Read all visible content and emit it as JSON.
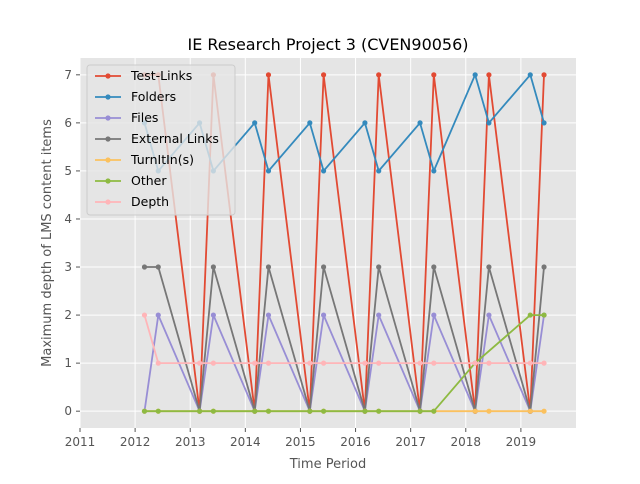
{
  "chart_data": {
    "type": "line",
    "title": "IE Research Project 3 (CVEN90056)",
    "xlabel": "Time Period",
    "ylabel": "Maximum depth of LMS content items",
    "xlim": [
      2011,
      2020
    ],
    "ylim": [
      -0.35,
      7.35
    ],
    "xticks": [
      2011,
      2012,
      2013,
      2014,
      2015,
      2016,
      2017,
      2018,
      2019
    ],
    "yticks": [
      0,
      1,
      2,
      3,
      4,
      5,
      6,
      7
    ],
    "grid": true,
    "legend_position": "top-left",
    "x": [
      2012.17,
      2012.42,
      2013.17,
      2013.42,
      2014.17,
      2014.42,
      2015.17,
      2015.42,
      2016.17,
      2016.42,
      2017.17,
      2017.42,
      2018.17,
      2018.42,
      2019.17,
      2019.42
    ],
    "series": [
      {
        "name": "Test-Links",
        "color": "#E24A33",
        "values": [
          7,
          7,
          0,
          7,
          0,
          7,
          0,
          7,
          0,
          7,
          0,
          7,
          0,
          7,
          0,
          7
        ]
      },
      {
        "name": "Folders",
        "color": "#348ABD",
        "values": [
          6,
          5,
          6,
          5,
          6,
          5,
          6,
          5,
          6,
          5,
          6,
          5,
          7,
          6,
          7,
          6
        ]
      },
      {
        "name": "Files",
        "color": "#988ED5",
        "values": [
          0,
          2,
          0,
          2,
          0,
          2,
          0,
          2,
          0,
          2,
          0,
          2,
          0,
          2,
          0,
          2
        ]
      },
      {
        "name": "External Links",
        "color": "#777777",
        "values": [
          3,
          3,
          0,
          3,
          0,
          3,
          0,
          3,
          0,
          3,
          0,
          3,
          0,
          3,
          0,
          3
        ]
      },
      {
        "name": "TurnItIn(s)",
        "color": "#FBC15E",
        "values": [
          0,
          0,
          0,
          0,
          0,
          0,
          0,
          0,
          0,
          0,
          0,
          0,
          0,
          0,
          0,
          0
        ]
      },
      {
        "name": "Other",
        "color": "#8EBA42",
        "values": [
          0,
          0,
          0,
          0,
          0,
          0,
          0,
          0,
          0,
          0,
          0,
          0,
          1,
          null,
          2,
          2
        ]
      },
      {
        "name": "Depth",
        "color": "#FFB5B8",
        "values": [
          2,
          1,
          1,
          1,
          1,
          1,
          1,
          1,
          1,
          1,
          1,
          1,
          1,
          1,
          1,
          1
        ]
      }
    ]
  }
}
